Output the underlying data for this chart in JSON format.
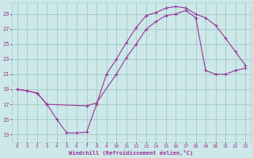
{
  "xlabel": "Windchill (Refroidissement éolien,°C)",
  "bg_color": "#cce8e8",
  "grid_color": "#aacccc",
  "line_color": "#993399",
  "xlim": [
    -0.5,
    23.5
  ],
  "ylim": [
    12.0,
    30.5
  ],
  "yticks": [
    13,
    15,
    17,
    19,
    21,
    23,
    25,
    27,
    29
  ],
  "xticks": [
    0,
    1,
    2,
    3,
    4,
    5,
    6,
    7,
    8,
    9,
    10,
    11,
    12,
    13,
    14,
    15,
    16,
    17,
    18,
    19,
    20,
    21,
    22,
    23
  ],
  "line1_x": [
    0,
    1,
    2,
    3,
    4,
    5,
    6,
    7,
    8,
    9,
    10,
    11,
    12,
    13,
    14,
    15,
    16,
    17,
    18,
    19,
    20,
    21,
    22,
    23
  ],
  "line1_y": [
    19.0,
    18.8,
    18.5,
    17.0,
    15.0,
    13.2,
    13.2,
    13.3,
    17.0,
    21.0,
    23.0,
    25.2,
    27.2,
    28.8,
    29.2,
    29.8,
    30.0,
    29.8,
    29.0,
    28.5,
    27.5,
    25.8,
    24.0,
    22.2
  ],
  "line2_x": [
    0,
    1,
    2,
    3,
    7,
    8,
    10,
    11,
    12,
    13,
    14,
    15,
    16,
    17,
    18,
    19,
    20,
    21,
    22,
    23
  ],
  "line2_y": [
    19.0,
    18.8,
    18.5,
    17.0,
    16.8,
    17.2,
    21.0,
    23.2,
    25.0,
    27.0,
    28.0,
    28.8,
    29.0,
    29.5,
    28.5,
    21.5,
    21.0,
    21.0,
    21.5,
    21.8
  ]
}
